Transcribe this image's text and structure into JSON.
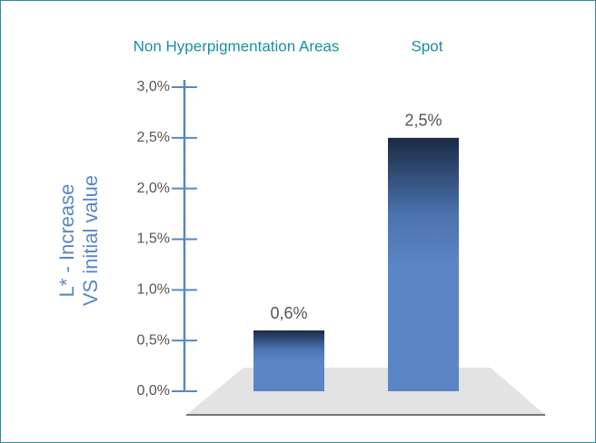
{
  "chart_data": {
    "type": "bar",
    "categories": [
      "Non Hyperpigmentation Areas",
      "Spot"
    ],
    "values": [
      0.6,
      2.5
    ],
    "value_labels": [
      "0,6%",
      "2,5%"
    ],
    "ylabel": [
      "L* - Increase",
      "VS initial value"
    ],
    "color": "#5b86c5",
    "ylim": [
      0,
      3
    ],
    "yticks": [
      {
        "value": 0,
        "label": "0,0%"
      },
      {
        "value": 0.5,
        "label": "0,5%"
      },
      {
        "value": 1,
        "label": "1,0%"
      },
      {
        "value": 1.5,
        "label": "1,5%"
      },
      {
        "value": 2,
        "label": "2,0%"
      },
      {
        "value": 2.5,
        "label": "2,5%"
      },
      {
        "value": 3,
        "label": "3,0%"
      }
    ]
  }
}
